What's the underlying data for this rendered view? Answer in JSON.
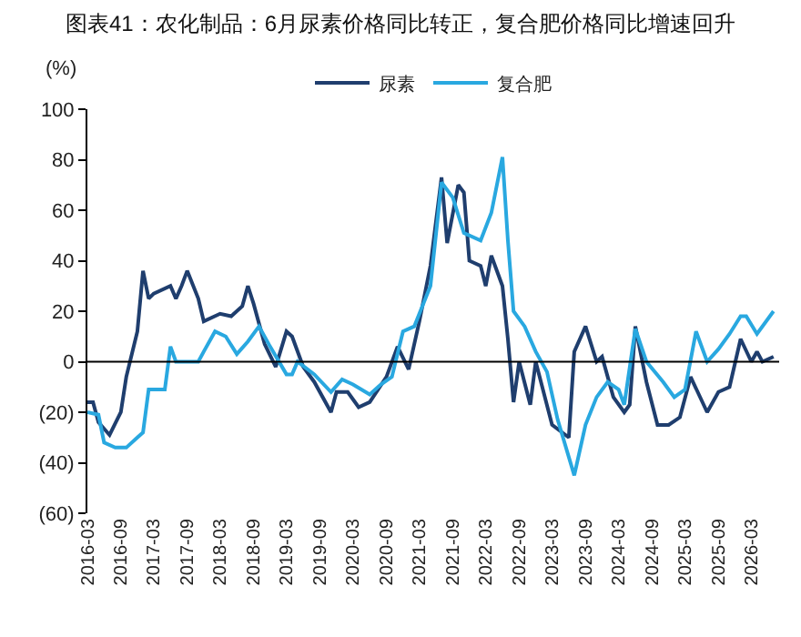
{
  "chart_data": {
    "type": "line",
    "title": "图表41：农化制品：6月尿素价格同比转正，复合肥价格同比增速回升",
    "ylabel": "(%)",
    "legend": "top",
    "grid": false,
    "ref_lines": [
      {
        "axis": "y",
        "value": 0,
        "color": "#000000"
      }
    ],
    "marker": "none",
    "line_style": "solid",
    "xlim": [
      "2016-03",
      "2026-08"
    ],
    "xticks": [
      "2016-03",
      "2016-09",
      "2017-03",
      "2017-09",
      "2018-03",
      "2018-09",
      "2019-03",
      "2019-09",
      "2020-03",
      "2020-09",
      "2021-03",
      "2021-09",
      "2022-03",
      "2022-09",
      "2023-03",
      "2023-09",
      "2024-03",
      "2024-09",
      "2025-03",
      "2025-09",
      "2026-03"
    ],
    "ylim": [
      -60,
      100
    ],
    "yticks": [
      100,
      80,
      60,
      40,
      20,
      0,
      {
        "value": -20,
        "label": "(20)"
      },
      {
        "value": -40,
        "label": "(40)"
      },
      {
        "value": -60,
        "label": "(60)"
      }
    ],
    "series": [
      {
        "name": "尿素",
        "color": "#1f3e6e",
        "x": [
          "2016-03",
          "2016-04",
          "2016-05",
          "2016-07",
          "2016-09",
          "2016-10",
          "2016-12",
          "2017-01",
          "2017-02",
          "2017-03",
          "2017-06",
          "2017-07",
          "2017-08",
          "2017-09",
          "2017-11",
          "2017-12",
          "2018-03",
          "2018-05",
          "2018-07",
          "2018-08",
          "2018-09",
          "2018-11",
          "2019-01",
          "2019-03",
          "2019-04",
          "2019-06",
          "2019-08",
          "2019-11",
          "2019-12",
          "2020-02",
          "2020-04",
          "2020-06",
          "2020-09",
          "2020-11",
          "2021-01",
          "2021-03",
          "2021-05",
          "2021-07",
          "2021-08",
          "2021-10",
          "2021-11",
          "2021-12",
          "2022-02",
          "2022-03",
          "2022-04",
          "2022-06",
          "2022-07",
          "2022-08",
          "2022-09",
          "2022-11",
          "2022-12",
          "2023-03",
          "2023-06",
          "2023-07",
          "2023-09",
          "2023-11",
          "2023-12",
          "2024-02",
          "2024-04",
          "2024-05",
          "2024-06",
          "2024-08",
          "2024-10",
          "2024-12",
          "2025-02",
          "2025-04",
          "2025-07",
          "2025-09",
          "2025-11",
          "2026-01",
          "2026-03",
          "2026-04",
          "2026-05",
          "2026-07"
        ],
        "values": [
          -16,
          -16,
          -24,
          -29,
          -20,
          -6,
          12,
          36,
          25,
          27,
          30,
          25,
          30,
          36,
          25,
          16,
          19,
          18,
          22,
          30,
          23,
          7,
          -2,
          12,
          10,
          -2,
          -8,
          -20,
          -12,
          -12,
          -18,
          -16,
          -6,
          6,
          -3,
          16,
          38,
          73,
          47,
          70,
          67,
          40,
          38,
          30,
          42,
          30,
          9,
          -16,
          0,
          -17,
          0,
          -25,
          -30,
          4,
          14,
          0,
          2,
          -14,
          -20,
          -17,
          14,
          -8,
          -25,
          -25,
          -22,
          -6,
          -20,
          -12,
          -10,
          9,
          0,
          4,
          0,
          2
        ]
      },
      {
        "name": "复合肥",
        "color": "#29a8e0",
        "x": [
          "2016-03",
          "2016-05",
          "2016-06",
          "2016-08",
          "2016-10",
          "2016-12",
          "2017-01",
          "2017-02",
          "2017-05",
          "2017-06",
          "2017-07",
          "2017-11",
          "2017-12",
          "2018-02",
          "2018-04",
          "2018-06",
          "2018-08",
          "2018-10",
          "2018-12",
          "2019-03",
          "2019-04",
          "2019-05",
          "2019-08",
          "2019-11",
          "2020-01",
          "2020-03",
          "2020-06",
          "2020-08",
          "2020-10",
          "2020-12",
          "2021-02",
          "2021-05",
          "2021-07",
          "2021-09",
          "2021-11",
          "2022-02",
          "2022-04",
          "2022-06",
          "2022-07",
          "2022-08",
          "2022-10",
          "2022-12",
          "2023-02",
          "2023-04",
          "2023-07",
          "2023-09",
          "2023-11",
          "2024-01",
          "2024-03",
          "2024-04",
          "2024-06",
          "2024-08",
          "2024-11",
          "2025-01",
          "2025-03",
          "2025-05",
          "2025-07",
          "2025-09",
          "2025-11",
          "2026-01",
          "2026-02",
          "2026-04",
          "2026-07"
        ],
        "values": [
          -20,
          -21,
          -32,
          -34,
          -34,
          -30,
          -28,
          -11,
          -11,
          6,
          0,
          0,
          4,
          12,
          10,
          3,
          8,
          14,
          6,
          -5,
          -5,
          0,
          -5,
          -12,
          -7,
          -9,
          -13,
          -9,
          -6,
          12,
          14,
          30,
          71,
          65,
          51,
          48,
          59,
          81,
          48,
          20,
          14,
          4,
          -4,
          -23,
          -45,
          -25,
          -14,
          -8,
          -11,
          -17,
          13,
          0,
          -8,
          -14,
          -11,
          12,
          0,
          5,
          11,
          18,
          18,
          11,
          20
        ]
      }
    ]
  }
}
